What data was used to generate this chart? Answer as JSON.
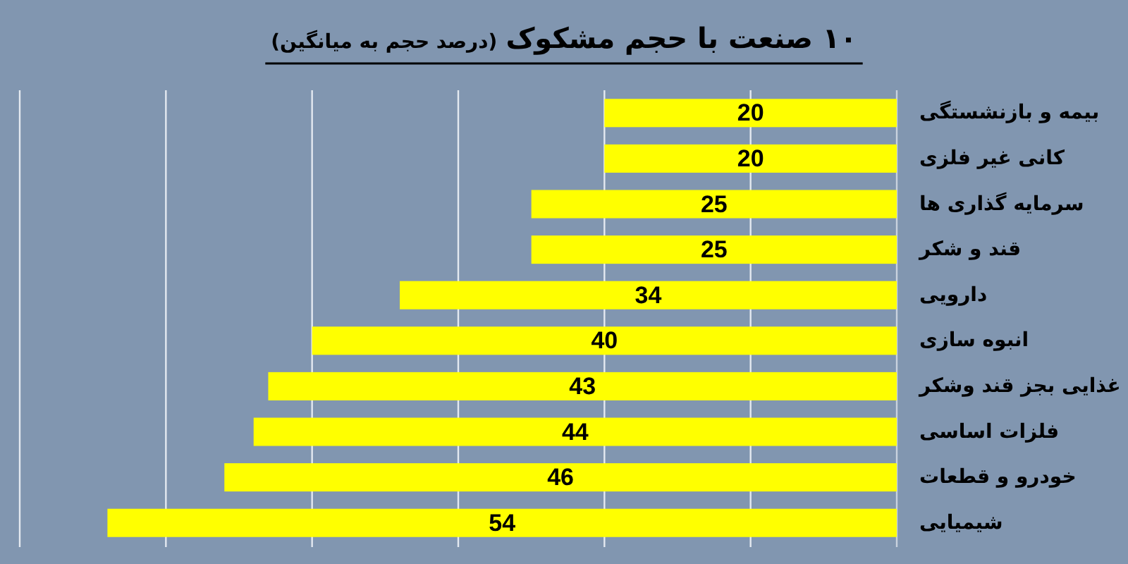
{
  "chart_data": {
    "type": "bar",
    "orientation": "horizontal",
    "title": "۱۰ صنعت با حجم مشکوک",
    "subtitle": "(درصد حجم به میانگین)",
    "categories": [
      "بیمه و بازنشستگی",
      "کانی غیر فلزی",
      "سرمایه گذاری ها",
      "قند و شکر",
      "دارویی",
      "انبوه سازی",
      "غذایی بجز قند وشکر",
      "فلزات اساسی",
      "خودرو و قطعات",
      "شیمیایی"
    ],
    "values": [
      20,
      20,
      25,
      25,
      34,
      40,
      43,
      44,
      46,
      54
    ],
    "color": "#ffff00",
    "xlim": [
      60,
      0
    ],
    "xticks": [
      {
        "value": 0,
        "label": null
      },
      {
        "value": 10,
        "label": null
      },
      {
        "value": 20,
        "label": null
      },
      {
        "value": 30,
        "label": null
      },
      {
        "value": 40,
        "label": null
      },
      {
        "value": 50,
        "label": null
      },
      {
        "value": 60,
        "label": null
      }
    ],
    "grid": "x",
    "tick_labels": "y",
    "data_labels": true
  }
}
